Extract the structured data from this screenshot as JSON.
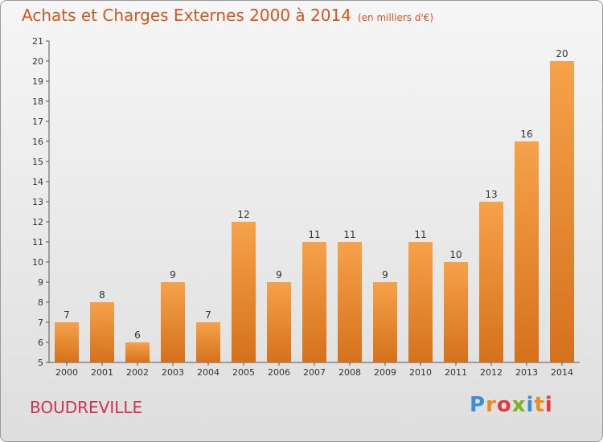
{
  "title": "Achats et Charges Externes 2000 à 2014",
  "unit": "(en milliers d'€)",
  "commune": "BOUDREVILLE",
  "logo": "Proxiti",
  "colors": {
    "bar_light": "#f6a24a",
    "bar_dark": "#d5711c",
    "title": "#d4561f",
    "commune": "#cc3352"
  },
  "chart_data": {
    "type": "bar",
    "title": "Achats et Charges Externes 2000 à 2014",
    "subtitle": "(en milliers d'€)",
    "categories": [
      "2000",
      "2001",
      "2002",
      "2003",
      "2004",
      "2005",
      "2006",
      "2007",
      "2008",
      "2009",
      "2010",
      "2011",
      "2012",
      "2013",
      "2014"
    ],
    "values": [
      7,
      8,
      6,
      9,
      7,
      12,
      9,
      11,
      11,
      9,
      11,
      10,
      13,
      16,
      20
    ],
    "ylim": [
      5,
      21
    ],
    "yticks": [
      5,
      6,
      7,
      8,
      9,
      10,
      11,
      12,
      13,
      14,
      15,
      16,
      17,
      18,
      19,
      20,
      21
    ],
    "grid": false,
    "data_labels": true
  }
}
